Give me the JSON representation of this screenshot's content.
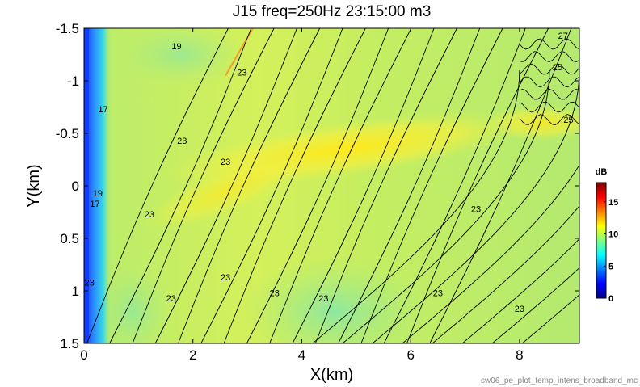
{
  "chart_data": {
    "type": "heatmap",
    "title": "J15 freq=250Hz 23:15:00 m3",
    "xlabel": "X(km)",
    "ylabel": "Y(km)",
    "xlim": [
      0,
      9.1
    ],
    "ylim": [
      -1.5,
      1.5
    ],
    "y_reversed": true,
    "xticks": [
      0,
      2,
      4,
      6,
      8
    ],
    "yticks": [
      -1.5,
      -1,
      -0.5,
      0,
      0.5,
      1,
      1.5
    ],
    "colorbar": {
      "label": "dB",
      "ticks": [
        0,
        5,
        10,
        15
      ],
      "range": [
        0,
        18
      ],
      "colormap": "jet"
    },
    "contour_labels": [
      "17",
      "19",
      "23",
      "25",
      "27"
    ],
    "grid": false
  },
  "footer": "sw06_pe_plot_temp_intens_broadband_mc",
  "colors": {
    "background": "#ffffff",
    "field_dominant": "#c8f06a",
    "field_high": "#ffea1a",
    "near_source_low": "#1a3cff",
    "contour_line": "#000000"
  }
}
